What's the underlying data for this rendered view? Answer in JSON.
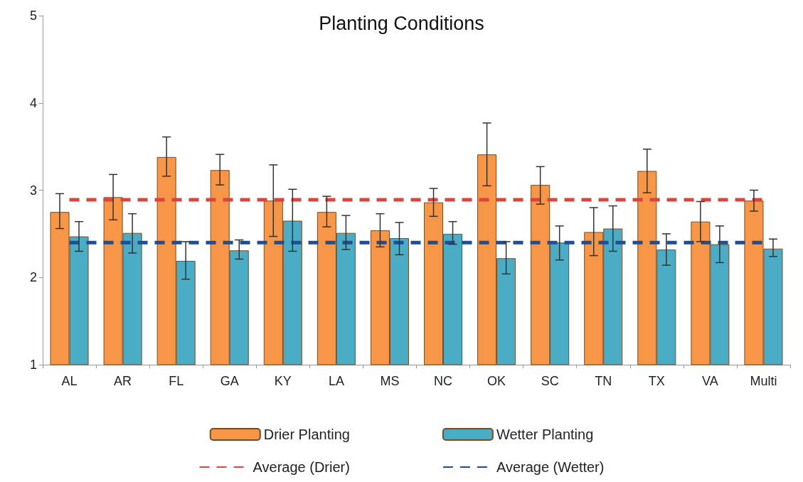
{
  "chart_data": {
    "type": "bar",
    "title": "Planting Conditions",
    "categories": [
      "AL",
      "AR",
      "FL",
      "GA",
      "KY",
      "LA",
      "MS",
      "NC",
      "OK",
      "SC",
      "TN",
      "TX",
      "VA",
      "Multi"
    ],
    "series": [
      {
        "name": "Drier Planting",
        "color": "#f79646",
        "values": [
          2.75,
          2.92,
          3.38,
          3.23,
          2.88,
          2.75,
          2.54,
          2.86,
          3.41,
          3.06,
          2.52,
          3.22,
          2.64,
          2.88
        ],
        "errors": [
          [
            2.56,
            2.96
          ],
          [
            2.66,
            3.18
          ],
          [
            3.16,
            3.61
          ],
          [
            3.06,
            3.41
          ],
          [
            2.47,
            3.29
          ],
          [
            2.58,
            2.93
          ],
          [
            2.35,
            2.73
          ],
          [
            2.7,
            3.02
          ],
          [
            3.05,
            3.77
          ],
          [
            2.84,
            3.27
          ],
          [
            2.25,
            2.8
          ],
          [
            2.97,
            3.47
          ],
          [
            2.41,
            2.87
          ],
          [
            2.76,
            3.0
          ]
        ]
      },
      {
        "name": "Wetter Planting",
        "color": "#4bacc6",
        "values": [
          2.47,
          2.51,
          2.19,
          2.31,
          2.65,
          2.51,
          2.45,
          2.5,
          2.22,
          2.4,
          2.56,
          2.32,
          2.38,
          2.33
        ],
        "errors": [
          [
            2.3,
            2.64
          ],
          [
            2.28,
            2.73
          ],
          [
            1.98,
            2.41
          ],
          [
            2.21,
            2.43
          ],
          [
            2.3,
            3.01
          ],
          [
            2.32,
            2.71
          ],
          [
            2.26,
            2.63
          ],
          [
            2.38,
            2.64
          ],
          [
            2.04,
            2.41
          ],
          [
            2.2,
            2.59
          ],
          [
            2.3,
            2.82
          ],
          [
            2.14,
            2.5
          ],
          [
            2.17,
            2.59
          ],
          [
            2.24,
            2.44
          ]
        ]
      },
      {
        "name": "Average (Drier)",
        "type": "line",
        "color": "#d9463f",
        "line_style": "dashed",
        "values": [
          2.89,
          2.89,
          2.89,
          2.89,
          2.89,
          2.89,
          2.89,
          2.89,
          2.89,
          2.89,
          2.89,
          2.89,
          2.89,
          2.89
        ]
      },
      {
        "name": "Average (Wetter)",
        "type": "line",
        "color": "#1f4e99",
        "line_style": "dashed",
        "values": [
          2.4,
          2.4,
          2.4,
          2.4,
          2.4,
          2.4,
          2.4,
          2.4,
          2.4,
          2.4,
          2.4,
          2.4,
          2.4,
          2.4
        ]
      }
    ],
    "ylim": [
      1,
      5
    ],
    "yticks": [
      1,
      2,
      3,
      4,
      5
    ],
    "grid": false,
    "legend": "bottom",
    "marker": "none"
  }
}
